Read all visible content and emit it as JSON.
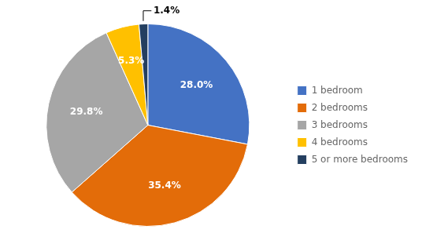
{
  "chart_data": {
    "type": "pie",
    "categories": [
      "1 bedroom",
      "2 bedrooms",
      "3 bedrooms",
      "4 bedrooms",
      "5 or more bedrooms"
    ],
    "values": [
      28.0,
      35.4,
      29.8,
      5.3,
      1.4
    ],
    "value_labels": [
      "28.0%",
      "35.4%",
      "29.8%",
      "5.3%",
      "1.4%"
    ],
    "colors": [
      "#4472C4",
      "#E36C09",
      "#A6A6A6",
      "#FFC000",
      "#243F60"
    ],
    "data_labels": true,
    "legend": "right"
  }
}
